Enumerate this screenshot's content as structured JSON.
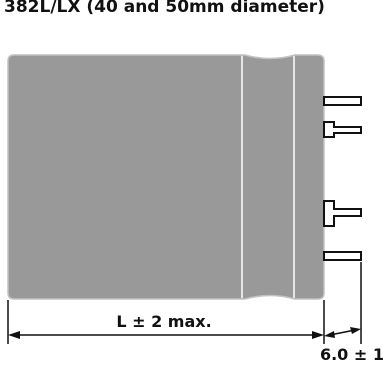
{
  "title": "382L/LX (40 and 50mm diameter)",
  "dimensions": {
    "length_label": "L ± 2 max.",
    "terminal_label": "6.0 ± 1"
  },
  "colors": {
    "body_fill": "#999999",
    "body_stroke": "#bdbdbd",
    "line": "#111111",
    "background": "#ffffff"
  }
}
